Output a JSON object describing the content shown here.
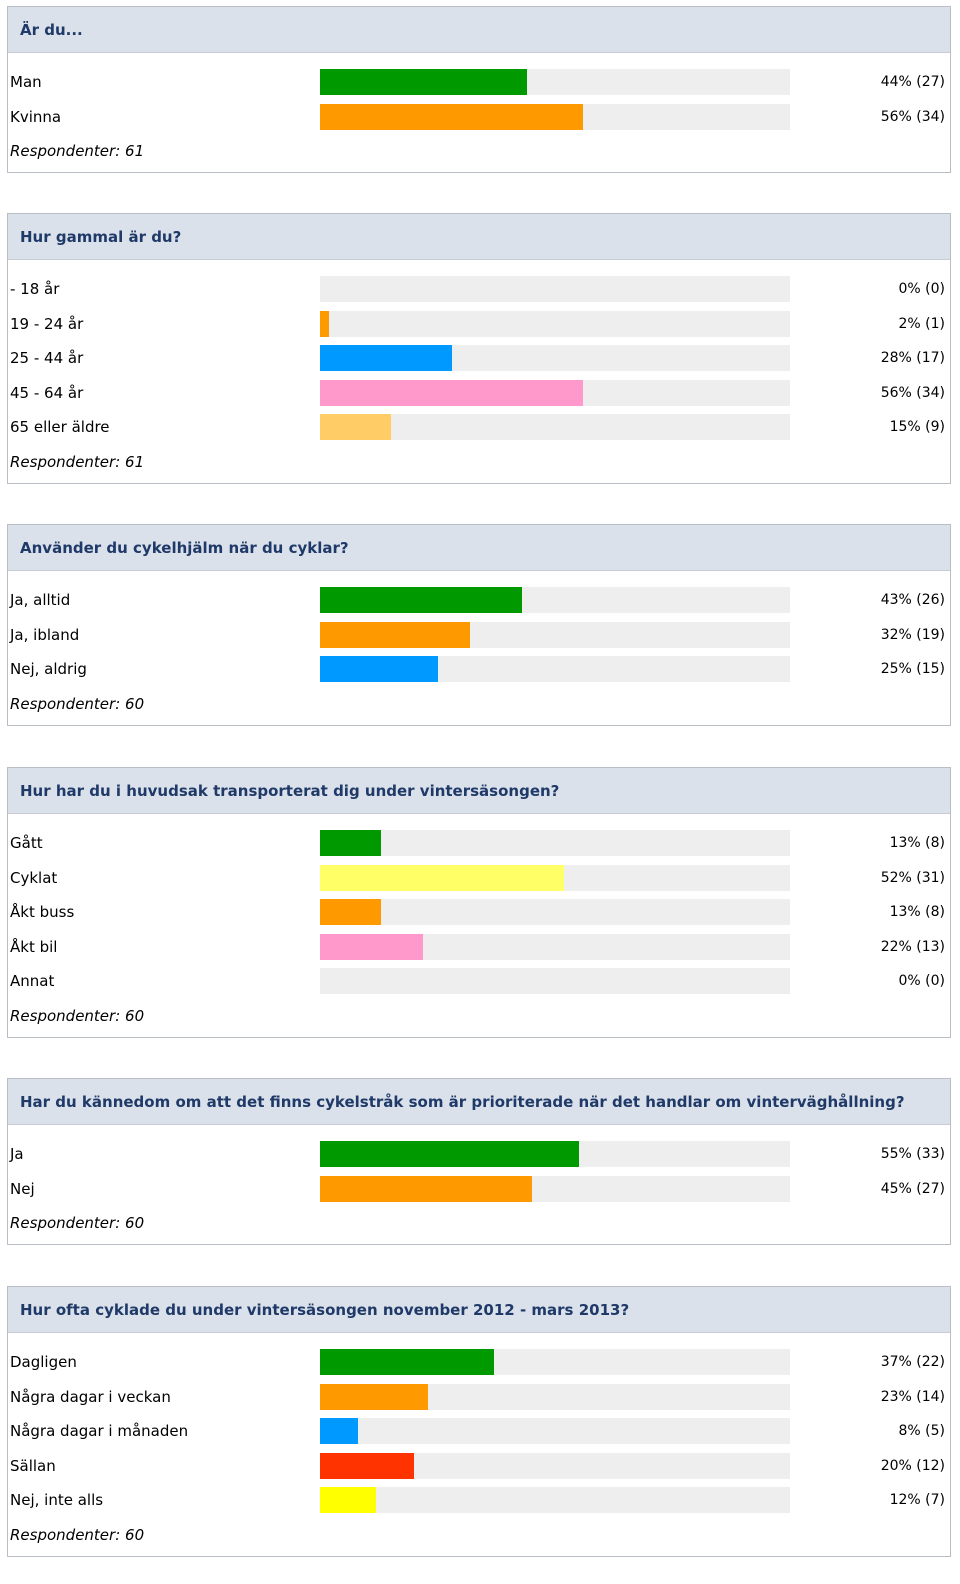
{
  "chart_data": [
    {
      "type": "bar",
      "title": "Är du...",
      "categories": [
        "Man",
        "Kvinna"
      ],
      "percent": [
        44,
        56
      ],
      "counts": [
        27,
        34
      ],
      "value_labels": [
        "44% (27)",
        "56% (34)"
      ],
      "colors": [
        "#009900",
        "#ff9900"
      ],
      "respondents": "Respondenter: 61"
    },
    {
      "type": "bar",
      "title": "Hur gammal är du?",
      "categories": [
        "- 18 år",
        "19 - 24 år",
        "25 - 44 år",
        "45 - 64 år",
        "65 eller äldre"
      ],
      "percent": [
        0,
        2,
        28,
        56,
        15
      ],
      "counts": [
        0,
        1,
        17,
        34,
        9
      ],
      "value_labels": [
        "0% (0)",
        "2% (1)",
        "28% (17)",
        "56% (34)",
        "15% (9)"
      ],
      "colors": [
        "#009900",
        "#ff9900",
        "#0099ff",
        "#ff99cc",
        "#ffcc66"
      ],
      "respondents": "Respondenter: 61"
    },
    {
      "type": "bar",
      "title": "Använder du cykelhjälm när du cyklar?",
      "categories": [
        "Ja, alltid",
        "Ja, ibland",
        "Nej, aldrig"
      ],
      "percent": [
        43,
        32,
        25
      ],
      "counts": [
        26,
        19,
        15
      ],
      "value_labels": [
        "43% (26)",
        "32% (19)",
        "25% (15)"
      ],
      "colors": [
        "#009900",
        "#ff9900",
        "#0099ff"
      ],
      "respondents": "Respondenter: 60"
    },
    {
      "type": "bar",
      "title": "Hur har du i huvudsak transporterat dig under vintersäsongen?",
      "categories": [
        "Gått",
        "Cyklat",
        "Åkt buss",
        "Åkt bil",
        "Annat"
      ],
      "percent": [
        13,
        52,
        13,
        22,
        0
      ],
      "counts": [
        8,
        31,
        8,
        13,
        0
      ],
      "value_labels": [
        "13% (8)",
        "52% (31)",
        "13% (8)",
        "22% (13)",
        "0% (0)"
      ],
      "colors": [
        "#009900",
        "#ffff66",
        "#ff9900",
        "#ff99cc",
        "#cccccc"
      ],
      "respondents": "Respondenter: 60"
    },
    {
      "type": "bar",
      "title": "Har du kännedom om att det finns cykelstråk som är  prioriterade när det handlar om vinterväghållning?",
      "categories": [
        "Ja",
        "Nej"
      ],
      "percent": [
        55,
        45
      ],
      "counts": [
        33,
        27
      ],
      "value_labels": [
        "55% (33)",
        "45% (27)"
      ],
      "colors": [
        "#009900",
        "#ff9900"
      ],
      "respondents": "Respondenter: 60"
    },
    {
      "type": "bar",
      "title": "Hur ofta cyklade du under vintersäsongen november 2012 - mars 2013?",
      "categories": [
        "Dagligen",
        "Några dagar i veckan",
        "Några dagar i månaden",
        "Sällan",
        "Nej, inte alls"
      ],
      "percent": [
        37,
        23,
        8,
        20,
        12
      ],
      "counts": [
        22,
        14,
        5,
        12,
        7
      ],
      "value_labels": [
        "37% (22)",
        "23% (14)",
        "8% (5)",
        "20% (12)",
        "12% (7)"
      ],
      "colors": [
        "#009900",
        "#ff9900",
        "#0099ff",
        "#ff3300",
        "#ffff00"
      ],
      "respondents": "Respondenter: 60"
    }
  ]
}
